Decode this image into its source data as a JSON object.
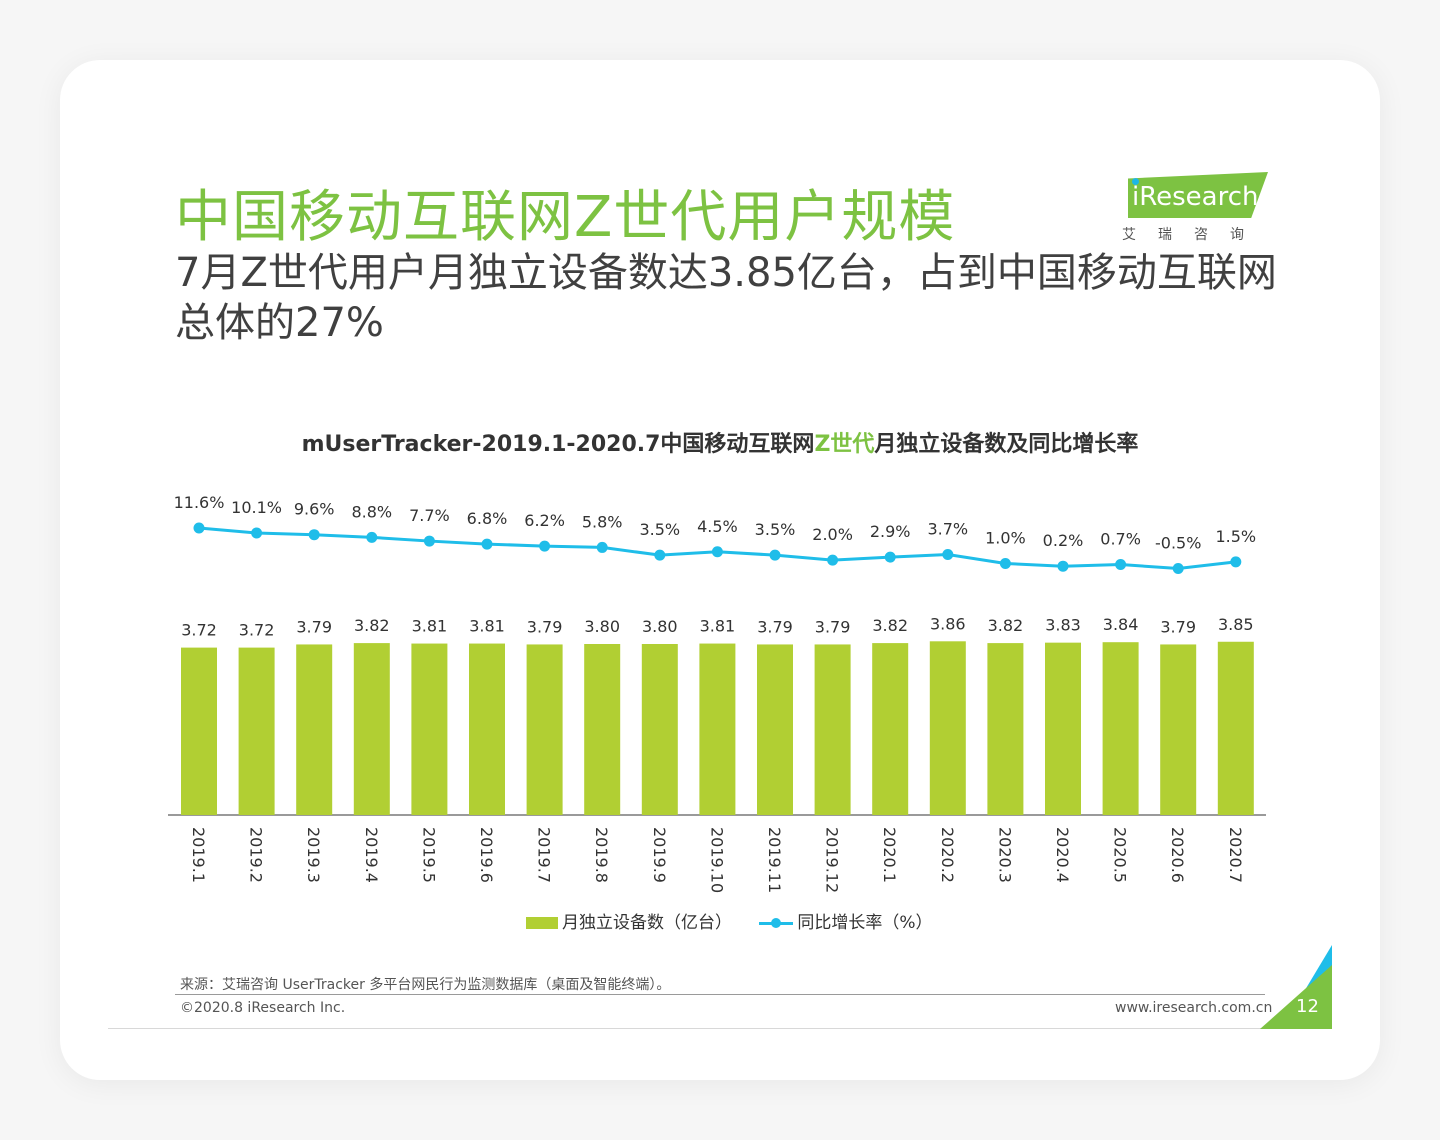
{
  "slide": {
    "title": "中国移动互联网Z世代用户规模",
    "subtitle": "7月Z世代用户月独立设备数达3.85亿台，占到中国移动互联网总体的27%",
    "logo_text": "Research",
    "logo_sub": "艾瑞咨询",
    "page_number": "12"
  },
  "chart_title": {
    "prefix": "mUserTracker-2019.1-2020.7中国移动互联网",
    "highlight": "Z世代",
    "suffix": "月独立设备数及同比增长率"
  },
  "legend": {
    "bar_label": "月独立设备数（亿台）",
    "line_label": "同比增长率（%）"
  },
  "footer": {
    "source": "来源：艾瑞咨询 UserTracker 多平台网民行为监测数据库（桌面及智能终端）。",
    "copyright": "©2020.8 iResearch Inc.",
    "website": "www.iresearch.com.cn"
  },
  "colors": {
    "bar": "#b1cf33",
    "line": "#1fbde9",
    "title": "#7dc242",
    "axis": "#9a9a9a"
  },
  "chart_data": {
    "type": "bar",
    "categories": [
      "2019.1",
      "2019.2",
      "2019.3",
      "2019.4",
      "2019.5",
      "2019.6",
      "2019.7",
      "2019.8",
      "2019.9",
      "2019.10",
      "2019.11",
      "2019.12",
      "2020.1",
      "2020.2",
      "2020.3",
      "2020.4",
      "2020.5",
      "2020.6",
      "2020.7"
    ],
    "series": [
      {
        "name": "月独立设备数（亿台）",
        "type": "bar",
        "values": [
          3.72,
          3.72,
          3.79,
          3.82,
          3.81,
          3.81,
          3.79,
          3.8,
          3.8,
          3.81,
          3.79,
          3.79,
          3.82,
          3.86,
          3.82,
          3.83,
          3.84,
          3.79,
          3.85
        ],
        "labels": [
          "3.72",
          "3.72",
          "3.79",
          "3.82",
          "3.81",
          "3.81",
          "3.79",
          "3.80",
          "3.80",
          "3.81",
          "3.79",
          "3.79",
          "3.82",
          "3.86",
          "3.82",
          "3.83",
          "3.84",
          "3.79",
          "3.85"
        ]
      },
      {
        "name": "同比增长率（%）",
        "type": "line",
        "values": [
          11.6,
          10.1,
          9.6,
          8.8,
          7.7,
          6.8,
          6.2,
          5.8,
          3.5,
          4.5,
          3.5,
          2.0,
          2.9,
          3.7,
          1.0,
          0.2,
          0.7,
          -0.5,
          1.5
        ],
        "labels": [
          "11.6%",
          "10.1%",
          "9.6%",
          "8.8%",
          "7.7%",
          "6.8%",
          "6.2%",
          "5.8%",
          "3.5%",
          "4.5%",
          "3.5%",
          "2.0%",
          "2.9%",
          "3.7%",
          "1.0%",
          "0.2%",
          "0.7%",
          "-0.5%",
          "1.5%"
        ]
      }
    ],
    "grid": false,
    "legend_position": "bottom"
  }
}
